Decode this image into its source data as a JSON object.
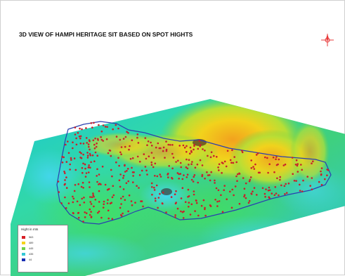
{
  "title": "3D VIEW OF HAMPI HERITAGE SIT BASED ON SPOT HIGHTS",
  "legend": {
    "title": "Hight in mts",
    "items": [
      {
        "label": "563",
        "color": "#d81f26"
      },
      {
        "label": "489",
        "color": "#f5d31a"
      },
      {
        "label": "445",
        "color": "#6fd24b"
      },
      {
        "label": "435",
        "color": "#35c8d6"
      },
      {
        "label": "44",
        "color": "#1a2fb3"
      }
    ]
  },
  "icons": {
    "north_arrow": "compass-rose-icon"
  },
  "colors": {
    "outline": "#2a3fb0",
    "spot_points": "#c8202a",
    "north_arrow": "#e83b3b"
  }
}
